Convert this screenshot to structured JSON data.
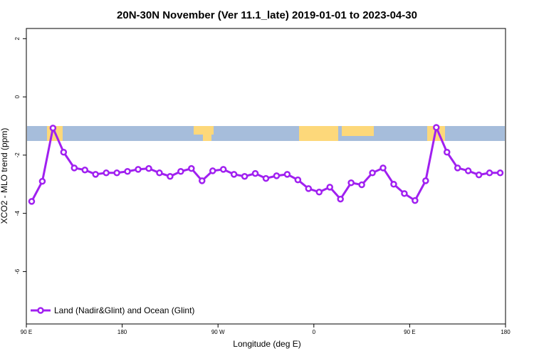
{
  "chart_data": {
    "type": "line",
    "title": "20N-30N November (Ver 11.1_late)   2019-01-01 to 2023-04-30",
    "x_label": "Longitude (deg E)",
    "y_label": "XCO2 - MLO trend (ppm)",
    "x": [
      95,
      105,
      115,
      125,
      135,
      145,
      155,
      165,
      175,
      185,
      195,
      205,
      215,
      225,
      235,
      245,
      255,
      265,
      275,
      285,
      295,
      305,
      315,
      325,
      335,
      345,
      355,
      365,
      375,
      385,
      395,
      405,
      415,
      425,
      435,
      445,
      455,
      465,
      475,
      485,
      495,
      505,
      515,
      525,
      535
    ],
    "series": [
      {
        "name": "Land (Nadir&Glint) and Ocean (Glint)",
        "color": "#a020f0",
        "values": [
          -3.59,
          -2.9,
          -1.07,
          -1.9,
          -2.44,
          -2.51,
          -2.66,
          -2.61,
          -2.61,
          -2.56,
          -2.49,
          -2.46,
          -2.61,
          -2.73,
          -2.56,
          -2.46,
          -2.88,
          -2.54,
          -2.49,
          -2.66,
          -2.73,
          -2.63,
          -2.8,
          -2.71,
          -2.66,
          -2.85,
          -3.15,
          -3.27,
          -3.1,
          -3.51,
          -2.95,
          -3.02,
          -2.61,
          -2.44,
          -3.0,
          -3.32,
          -3.56,
          -2.88,
          -1.05,
          -1.9,
          -2.44,
          -2.54,
          -2.68,
          -2.61,
          -2.61
        ]
      }
    ],
    "xlim": [
      90,
      540
    ],
    "xticks": [
      {
        "value": 90,
        "label": "90 E"
      },
      {
        "value": 180,
        "label": "180"
      },
      {
        "value": 270,
        "label": "90 W"
      },
      {
        "value": 360,
        "label": "0"
      },
      {
        "value": 450,
        "label": "90 E"
      },
      {
        "value": 540,
        "label": "180"
      }
    ],
    "ylim": [
      -7.8,
      2.35
    ],
    "yticks": [
      2,
      0,
      -2,
      -4,
      -6
    ],
    "legend": "bottom-left"
  }
}
